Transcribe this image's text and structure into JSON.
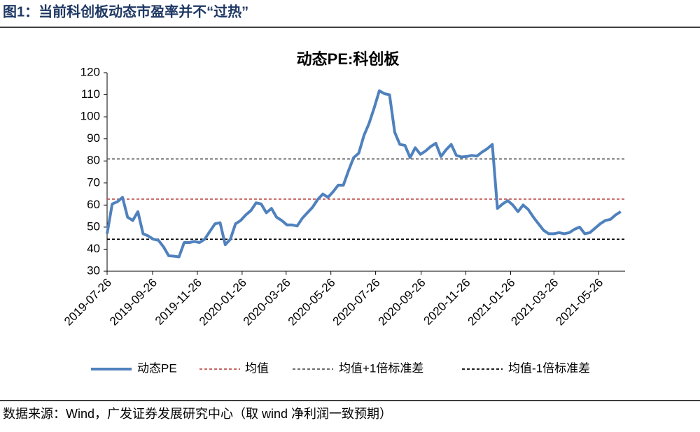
{
  "header": {
    "title": "图1：当前科创板动态市盈率并不“过热”"
  },
  "chart_data": {
    "type": "line",
    "title": "动态PE:科创板",
    "x": [
      "2019-07-26",
      "2019-08-02",
      "2019-08-09",
      "2019-08-16",
      "2019-08-23",
      "2019-08-30",
      "2019-09-06",
      "2019-09-13",
      "2019-09-20",
      "2019-09-27",
      "2019-10-04",
      "2019-10-11",
      "2019-10-18",
      "2019-10-25",
      "2019-11-01",
      "2019-11-08",
      "2019-11-15",
      "2019-11-22",
      "2019-11-29",
      "2019-12-06",
      "2019-12-13",
      "2019-12-20",
      "2019-12-27",
      "2020-01-03",
      "2020-01-10",
      "2020-01-17",
      "2020-01-24",
      "2020-01-31",
      "2020-02-07",
      "2020-02-14",
      "2020-02-21",
      "2020-02-28",
      "2020-03-06",
      "2020-03-13",
      "2020-03-20",
      "2020-03-27",
      "2020-04-03",
      "2020-04-10",
      "2020-04-17",
      "2020-04-24",
      "2020-05-01",
      "2020-05-08",
      "2020-05-15",
      "2020-05-22",
      "2020-05-29",
      "2020-06-05",
      "2020-06-12",
      "2020-06-19",
      "2020-06-26",
      "2020-07-03",
      "2020-07-10",
      "2020-07-17",
      "2020-07-24",
      "2020-07-31",
      "2020-08-07",
      "2020-08-14",
      "2020-08-21",
      "2020-08-28",
      "2020-09-04",
      "2020-09-11",
      "2020-09-18",
      "2020-09-25",
      "2020-10-02",
      "2020-10-09",
      "2020-10-16",
      "2020-10-23",
      "2020-10-30",
      "2020-11-06",
      "2020-11-13",
      "2020-11-20",
      "2020-11-27",
      "2020-12-04",
      "2020-12-11",
      "2020-12-18",
      "2020-12-25",
      "2021-01-01",
      "2021-01-08",
      "2021-01-15",
      "2021-01-22",
      "2021-01-29",
      "2021-02-05",
      "2021-02-12",
      "2021-02-19",
      "2021-02-26",
      "2021-03-05",
      "2021-03-12",
      "2021-03-19",
      "2021-03-26",
      "2021-04-02",
      "2021-04-09",
      "2021-04-16",
      "2021-04-23",
      "2021-04-30",
      "2021-05-07",
      "2021-05-14",
      "2021-05-21",
      "2021-05-28",
      "2021-06-04",
      "2021-06-11",
      "2021-06-18",
      "2021-06-25"
    ],
    "series": [
      {
        "name": "动态PE",
        "color": "#4f81bd",
        "values": [
          47,
          60.5,
          61.5,
          63.5,
          54.5,
          53,
          57,
          47,
          46,
          44.5,
          44,
          41,
          37,
          36.8,
          36.5,
          43,
          43,
          43.5,
          43,
          44.5,
          48,
          51.5,
          52,
          42,
          44.5,
          51.5,
          53,
          55.5,
          57.5,
          61,
          60.5,
          56.5,
          58.5,
          54.5,
          53,
          51,
          51,
          50.5,
          54,
          56.5,
          59,
          62.5,
          65,
          63.5,
          66,
          69,
          69,
          75.5,
          81.5,
          83.5,
          91.5,
          97,
          104,
          111.8,
          110.5,
          110,
          93,
          87.5,
          87,
          81.5,
          86,
          83,
          84.5,
          86.5,
          88,
          82,
          85,
          87.5,
          82.5,
          81.8,
          82,
          82.5,
          82.2,
          84,
          85.5,
          87.5,
          58.5,
          60.5,
          62,
          60,
          57,
          60,
          58,
          54.5,
          51.5,
          48.5,
          47,
          47,
          47.5,
          47,
          47.5,
          49,
          50,
          47,
          47.5,
          49.5,
          51.5,
          53,
          53.5,
          55.5,
          57
        ]
      }
    ],
    "reference_lines": [
      {
        "name": "均值",
        "value": 62.7,
        "color": "#c0504d"
      },
      {
        "name": "均值+1倍标准差",
        "value": 80.9,
        "color": "#595959"
      },
      {
        "name": "均值-1倍标准差",
        "value": 44.5,
        "color": "#000000"
      }
    ],
    "xlim": [
      "2019-07-26",
      "2021-07-01"
    ],
    "xticks": [
      "2019-07-26",
      "2019-09-26",
      "2019-11-26",
      "2020-01-26",
      "2020-03-26",
      "2020-05-26",
      "2020-07-26",
      "2020-09-26",
      "2020-11-26",
      "2021-01-26",
      "2021-03-26",
      "2021-05-26"
    ],
    "ylim": [
      30,
      120
    ],
    "yticks": [
      30,
      40,
      50,
      60,
      70,
      80,
      90,
      100,
      110,
      120
    ],
    "grid": false
  },
  "footer": {
    "source": "数据来源：Wind，广发证券发展研究中心（取 wind 净利润一致预期）"
  }
}
